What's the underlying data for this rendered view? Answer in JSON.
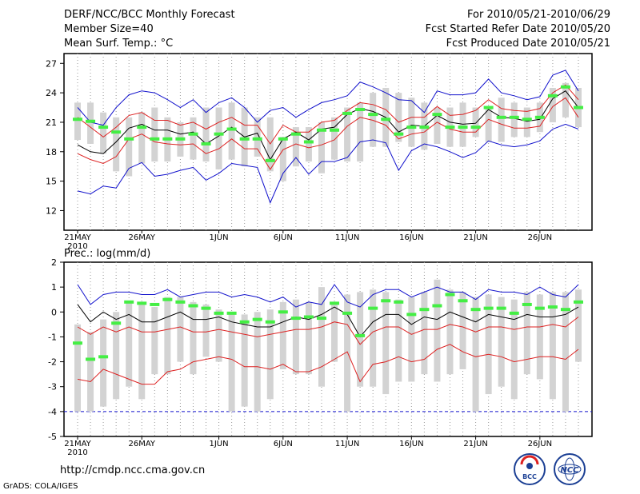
{
  "header": {
    "title": "DERF/NCC/BCC Monthly Forecast",
    "member_size": "Member Size=40",
    "variable": "Mean Surf. Temp.: °C",
    "period": "For 2010/05/21-2010/06/29",
    "refer_date": "Fcst Started Refer Date 2010/05/20",
    "produced_date": "Fcst Produced Date 2010/05/21"
  },
  "footer": {
    "url": "http://cmdp.ncc.cma.gov.cn",
    "grads_credit": "GrADS: COLA/IGES",
    "logo_bcc_text": "BCC",
    "logo_ncc_text": "NCC"
  },
  "colors": {
    "bar": "#d3d3d3",
    "median": "#44ee44",
    "mean": "#000000",
    "inner_band": "#dd2222",
    "outer_band": "#1111cc",
    "dashed": "#1111cc"
  },
  "chart_data": [
    {
      "type": "box",
      "title": "Mean Surf. Temp.: °C",
      "ylim": [
        10,
        28
      ],
      "yticks": [
        12,
        15,
        18,
        21,
        24,
        27
      ],
      "x_tick_labels": [
        "21MAY",
        "26MAY",
        "1JUN",
        "6JUN",
        "11JUN",
        "16JUN",
        "21JUN",
        "26JUN"
      ],
      "x_tick_sublabel": "2010",
      "x_tick_days": [
        1,
        6,
        12,
        17,
        22,
        27,
        32,
        37
      ],
      "days": 40,
      "bar_low": [
        19.2,
        18.8,
        17.8,
        16.0,
        15.5,
        16.8,
        17.0,
        17.0,
        17.5,
        17.2,
        17.0,
        16.2,
        17.2,
        16.5,
        17.5,
        16.0,
        15.0,
        16.5,
        17.0,
        15.8,
        17.2,
        17.0,
        17.0,
        18.5,
        18.5,
        19.0,
        18.5,
        18.2,
        18.8,
        18.5,
        18.5,
        19.5,
        19.0,
        19.0,
        19.5,
        19.5,
        20.0,
        21.0,
        21.5,
        20.5
      ],
      "bar_high": [
        23.0,
        23.0,
        22.0,
        21.5,
        21.5,
        22.0,
        22.5,
        21.5,
        21.0,
        21.5,
        22.5,
        22.5,
        23.0,
        22.5,
        21.5,
        21.5,
        19.5,
        20.5,
        20.5,
        21.0,
        21.5,
        22.5,
        23.0,
        24.0,
        24.5,
        24.0,
        23.5,
        23.0,
        22.5,
        22.5,
        23.0,
        22.5,
        22.5,
        23.5,
        23.0,
        22.5,
        23.0,
        24.5,
        25.0,
        24.5
      ],
      "median": [
        21.3,
        21.1,
        20.5,
        20.0,
        19.3,
        20.5,
        19.3,
        19.3,
        19.3,
        19.8,
        18.8,
        19.8,
        20.3,
        19.3,
        19.3,
        17.1,
        19.3,
        19.8,
        19.0,
        20.2,
        20.2,
        21.9,
        22.3,
        21.8,
        21.3,
        19.8,
        20.5,
        20.5,
        21.8,
        20.5,
        20.5,
        20.5,
        22.5,
        21.5,
        21.5,
        21.3,
        21.5,
        23.7,
        24.6,
        22.5
      ],
      "series": [
        {
          "name": "outer_high",
          "values": [
            22.5,
            21.0,
            20.7,
            22.5,
            23.8,
            24.2,
            24.0,
            23.3,
            22.5,
            23.3,
            22.0,
            23.0,
            23.5,
            22.5,
            21.0,
            22.2,
            22.5,
            21.5,
            22.3,
            23.0,
            23.3,
            23.7,
            25.1,
            24.6,
            24.0,
            23.3,
            23.2,
            22.0,
            24.2,
            23.8,
            23.8,
            24.0,
            25.4,
            24.0,
            23.7,
            23.3,
            23.6,
            25.8,
            26.3,
            24.2
          ]
        },
        {
          "name": "inner_high",
          "values": [
            21.5,
            20.5,
            19.5,
            20.5,
            21.7,
            22.0,
            21.2,
            21.2,
            20.7,
            21.0,
            20.3,
            21.0,
            21.5,
            20.7,
            20.7,
            18.8,
            20.7,
            20.0,
            20.0,
            21.0,
            21.2,
            22.2,
            23.0,
            22.8,
            22.3,
            21.0,
            21.5,
            21.5,
            22.6,
            21.7,
            21.8,
            22.2,
            23.3,
            22.4,
            22.2,
            22.1,
            22.4,
            24.0,
            24.8,
            23.3
          ]
        },
        {
          "name": "mean",
          "values": [
            18.7,
            18.0,
            17.8,
            19.0,
            20.4,
            20.8,
            20.2,
            20.2,
            19.8,
            20.0,
            18.8,
            19.6,
            20.5,
            19.5,
            19.9,
            17.2,
            19.3,
            20.0,
            19.2,
            20.3,
            20.5,
            21.8,
            22.4,
            22.1,
            21.5,
            20.0,
            20.7,
            20.6,
            21.7,
            21.0,
            20.8,
            20.9,
            22.3,
            21.5,
            21.4,
            21.1,
            21.3,
            23.4,
            24.2,
            22.5
          ]
        },
        {
          "name": "inner_low",
          "values": [
            17.8,
            17.2,
            16.8,
            17.5,
            19.3,
            19.8,
            19.0,
            18.8,
            18.7,
            18.8,
            17.8,
            18.3,
            19.3,
            18.3,
            18.3,
            16.2,
            18.2,
            18.8,
            18.4,
            18.7,
            19.2,
            20.6,
            21.5,
            21.2,
            20.7,
            19.3,
            19.8,
            20.0,
            21.0,
            20.3,
            20.0,
            20.0,
            21.3,
            20.8,
            20.4,
            20.4,
            20.6,
            22.6,
            23.5,
            21.5
          ]
        },
        {
          "name": "outer_low",
          "values": [
            14.0,
            13.7,
            14.5,
            14.3,
            16.3,
            16.9,
            15.5,
            15.7,
            16.1,
            16.4,
            15.1,
            15.8,
            16.8,
            16.6,
            16.4,
            12.8,
            15.8,
            17.4,
            15.7,
            17.0,
            17.0,
            17.4,
            19.0,
            19.2,
            18.9,
            16.1,
            18.1,
            18.8,
            18.5,
            18.0,
            17.4,
            17.9,
            19.1,
            18.7,
            18.5,
            18.7,
            19.1,
            20.3,
            20.8,
            20.3
          ]
        }
      ]
    },
    {
      "type": "box",
      "title": "Prec.: log(mm/d)",
      "ylim": [
        -5,
        2
      ],
      "yticks": [
        -5,
        -4,
        -3,
        -2,
        -1,
        0,
        1,
        2
      ],
      "x_tick_labels": [
        "21MAY",
        "26MAY",
        "1JUN",
        "6JUN",
        "11JUN",
        "16JUN",
        "21JUN",
        "26JUN"
      ],
      "x_tick_sublabel": "2010",
      "x_tick_days": [
        1,
        6,
        12,
        17,
        22,
        27,
        32,
        37
      ],
      "days": 40,
      "dashed_level": -4,
      "bar_low": [
        -4.0,
        -4.0,
        -3.8,
        -3.5,
        -3.0,
        -3.5,
        -2.5,
        -2.5,
        -2.0,
        -2.5,
        -1.8,
        -2.0,
        -4.0,
        -3.8,
        -4.0,
        -3.5,
        -2.3,
        -2.5,
        -2.5,
        -3.0,
        -2.0,
        -4.0,
        -3.0,
        -3.0,
        -3.3,
        -2.8,
        -2.8,
        -2.5,
        -2.8,
        -2.5,
        -2.3,
        -4.0,
        -3.3,
        -3.0,
        -3.5,
        -2.5,
        -2.7,
        -3.5,
        -4.0,
        -2.0
      ],
      "bar_high": [
        -0.5,
        -0.8,
        -0.3,
        0.0,
        0.4,
        0.4,
        0.2,
        0.6,
        0.6,
        0.4,
        0.3,
        0.1,
        0.0,
        -0.1,
        0.0,
        0.1,
        0.4,
        0.5,
        0.4,
        1.0,
        0.3,
        0.7,
        0.8,
        0.9,
        0.8,
        0.5,
        0.6,
        0.8,
        1.3,
        0.9,
        0.8,
        0.6,
        0.7,
        0.6,
        0.5,
        0.8,
        0.7,
        0.8,
        0.8,
        0.9
      ],
      "median": [
        -1.25,
        -1.9,
        -1.8,
        -0.45,
        0.4,
        0.35,
        0.3,
        0.5,
        0.4,
        0.25,
        0.15,
        -0.05,
        -0.05,
        -0.4,
        -0.3,
        -0.4,
        0.0,
        -0.25,
        -0.2,
        -0.25,
        0.35,
        -0.05,
        -0.95,
        0.15,
        0.45,
        0.4,
        -0.1,
        0.1,
        0.25,
        0.7,
        0.45,
        0.1,
        0.15,
        0.15,
        -0.05,
        0.3,
        0.15,
        0.2,
        0.1,
        0.4
      ],
      "series": [
        {
          "name": "outer_high",
          "values": [
            1.1,
            0.3,
            0.7,
            0.8,
            0.8,
            0.7,
            0.7,
            0.9,
            0.6,
            0.7,
            0.8,
            0.8,
            0.6,
            0.7,
            0.6,
            0.4,
            0.6,
            0.2,
            0.4,
            0.3,
            1.1,
            0.4,
            0.2,
            0.7,
            0.9,
            0.9,
            0.6,
            0.8,
            1.0,
            0.8,
            0.8,
            0.5,
            0.9,
            0.8,
            0.8,
            0.7,
            1.0,
            0.7,
            0.6,
            1.1
          ]
        },
        {
          "name": "mean",
          "values": [
            0.3,
            -0.4,
            0.0,
            -0.3,
            -0.1,
            -0.4,
            -0.4,
            -0.2,
            0.0,
            -0.3,
            -0.3,
            -0.2,
            -0.4,
            -0.5,
            -0.6,
            -0.6,
            -0.4,
            -0.2,
            -0.3,
            -0.1,
            0.2,
            -0.1,
            -1.0,
            -0.4,
            -0.1,
            -0.1,
            -0.5,
            -0.2,
            -0.3,
            0.0,
            -0.2,
            -0.4,
            -0.1,
            -0.2,
            -0.3,
            -0.1,
            -0.2,
            -0.2,
            -0.1,
            0.2
          ]
        },
        {
          "name": "inner_high",
          "values": [
            -0.6,
            -0.9,
            -0.6,
            -0.8,
            -0.6,
            -0.8,
            -0.8,
            -0.7,
            -0.6,
            -0.8,
            -0.8,
            -0.7,
            -0.8,
            -0.9,
            -1.0,
            -0.9,
            -0.8,
            -0.7,
            -0.7,
            -0.6,
            -0.4,
            -0.5,
            -1.3,
            -0.8,
            -0.6,
            -0.6,
            -0.9,
            -0.7,
            -0.7,
            -0.5,
            -0.6,
            -0.8,
            -0.6,
            -0.6,
            -0.7,
            -0.6,
            -0.6,
            -0.5,
            -0.6,
            -0.2
          ]
        },
        {
          "name": "inner_low",
          "values": [
            -2.7,
            -2.8,
            -2.3,
            -2.5,
            -2.7,
            -2.9,
            -2.9,
            -2.4,
            -2.3,
            -2.0,
            -1.9,
            -1.8,
            -1.9,
            -2.2,
            -2.2,
            -2.3,
            -2.1,
            -2.4,
            -2.4,
            -2.2,
            -1.9,
            -1.6,
            -2.8,
            -2.1,
            -2.0,
            -1.8,
            -2.0,
            -1.9,
            -1.5,
            -1.3,
            -1.6,
            -1.8,
            -1.7,
            -1.8,
            -2.0,
            -1.9,
            -1.8,
            -1.8,
            -1.9,
            -1.5
          ]
        }
      ]
    }
  ]
}
